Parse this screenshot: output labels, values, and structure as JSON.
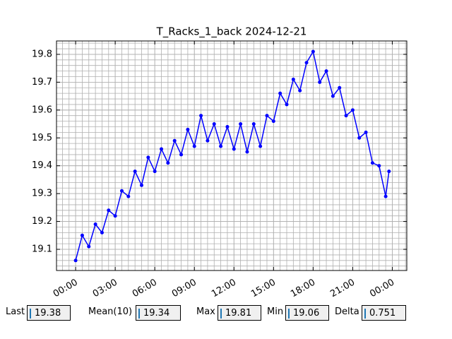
{
  "chart_data": {
    "type": "line",
    "title": "T_Racks_1_back 2024-12-21",
    "x": [
      0,
      0.5,
      1,
      1.5,
      2,
      2.5,
      3,
      3.5,
      4,
      4.5,
      5,
      5.5,
      6,
      6.5,
      7,
      7.5,
      8,
      8.5,
      9,
      9.5,
      10,
      10.5,
      11,
      11.5,
      12,
      12.5,
      13,
      13.5,
      14,
      14.5,
      15,
      15.5,
      16,
      16.5,
      17,
      17.5,
      18,
      18.5,
      19,
      19.5,
      20,
      20.5,
      21,
      21.5,
      22,
      22.5,
      23,
      23.5,
      23.75
    ],
    "series": [
      {
        "color": "#0000ff",
        "values": [
          19.06,
          19.15,
          19.11,
          19.19,
          19.16,
          19.24,
          19.22,
          19.31,
          19.29,
          19.38,
          19.33,
          19.43,
          19.38,
          19.46,
          19.41,
          19.49,
          19.44,
          19.53,
          19.47,
          19.58,
          19.49,
          19.55,
          19.47,
          19.54,
          19.46,
          19.55,
          19.45,
          19.55,
          19.47,
          19.58,
          19.56,
          19.66,
          19.62,
          19.71,
          19.67,
          19.77,
          19.81,
          19.7,
          19.74,
          19.65,
          19.68,
          19.58,
          19.6,
          19.5,
          19.52,
          19.41,
          19.4,
          19.29,
          19.38
        ]
      }
    ],
    "xlim": [
      -1.45,
      25.1
    ],
    "xticks": [
      {
        "value": 0,
        "label": "00:00"
      },
      {
        "value": 3,
        "label": "03:00"
      },
      {
        "value": 6,
        "label": "06:00"
      },
      {
        "value": 9,
        "label": "09:00"
      },
      {
        "value": 12,
        "label": "12:00"
      },
      {
        "value": 15,
        "label": "15:00"
      },
      {
        "value": 18,
        "label": "18:00"
      },
      {
        "value": 21,
        "label": "21:00"
      },
      {
        "value": 24,
        "label": "00:00"
      }
    ],
    "ylim": [
      19.024,
      19.848
    ],
    "yticks": [
      19.1,
      19.2,
      19.3,
      19.4,
      19.5,
      19.6,
      19.7,
      19.8
    ],
    "grid": true
  },
  "stats": [
    {
      "label": "Last",
      "value": 19.38
    },
    {
      "label": "Mean(10)",
      "value": 19.34
    },
    {
      "label": "Max",
      "value": 19.81
    },
    {
      "label": "Min",
      "value": 19.06
    },
    {
      "label": "Delta",
      "value": 0.751
    }
  ]
}
